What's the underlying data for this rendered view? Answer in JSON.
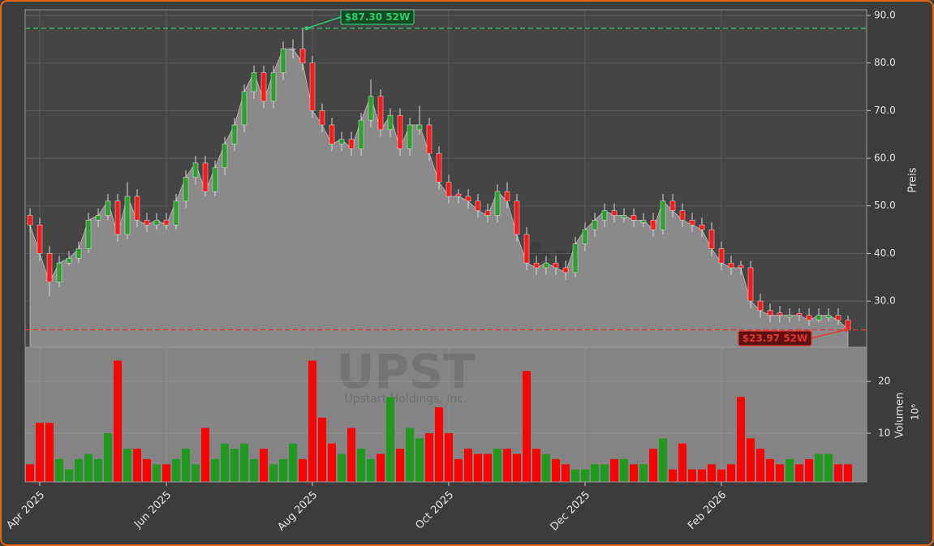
{
  "chart_data": {
    "type": "candlestick",
    "categories": [
      null,
      "Apr 2025",
      null,
      null,
      null,
      null,
      null,
      null,
      null,
      null,
      null,
      null,
      null,
      null,
      "Jun 2025",
      null,
      null,
      null,
      null,
      null,
      null,
      null,
      null,
      null,
      null,
      null,
      null,
      null,
      null,
      "Aug 2025",
      null,
      null,
      null,
      null,
      null,
      null,
      null,
      null,
      null,
      null,
      null,
      null,
      null,
      "Oct 2025",
      null,
      null,
      null,
      null,
      null,
      null,
      null,
      null,
      null,
      null,
      null,
      null,
      null,
      "Dec 2025",
      null,
      null,
      null,
      null,
      null,
      null,
      null,
      null,
      null,
      null,
      null,
      null,
      null,
      "Feb 2026",
      null,
      null,
      null,
      null,
      null,
      null,
      null,
      null,
      null,
      null,
      null,
      null,
      null
    ],
    "open": [
      48,
      46,
      40,
      34,
      38,
      39,
      41,
      47,
      48,
      51,
      44,
      52,
      47,
      46,
      47,
      46,
      51,
      56,
      59,
      53,
      58,
      63,
      67,
      74,
      78,
      72,
      78,
      83,
      83,
      80,
      70,
      67,
      63,
      64,
      62,
      68,
      73,
      66,
      69,
      62,
      66,
      67,
      61,
      55,
      52.5,
      52,
      51,
      49,
      48,
      53,
      51,
      44,
      38,
      37,
      38,
      37,
      36,
      42,
      45,
      47,
      49,
      47.5,
      48,
      46.5,
      47,
      45,
      51,
      49,
      47,
      46,
      45,
      41,
      38,
      37.5,
      37,
      30,
      28,
      27.5,
      26.6,
      27.4,
      27,
      26,
      26.5,
      27,
      26
    ],
    "high": [
      49.5,
      47.5,
      41.5,
      39.5,
      40.5,
      42.5,
      48.5,
      49.5,
      52.5,
      52.5,
      55,
      53.5,
      48.5,
      48.5,
      48.5,
      52.5,
      57.5,
      60.5,
      60.5,
      59.5,
      64.5,
      68.5,
      75.5,
      79.5,
      79.5,
      79.5,
      84.5,
      85,
      87.3,
      81.5,
      71.5,
      68.5,
      65.5,
      65.5,
      69.5,
      76.5,
      74.5,
      70.5,
      70.5,
      68.5,
      71,
      68.5,
      62.5,
      56.5,
      53.5,
      53.5,
      52.5,
      50.5,
      54.5,
      55,
      52.5,
      45.5,
      39.5,
      39.5,
      39.5,
      38.5,
      43.5,
      46.5,
      48.5,
      50.5,
      50.5,
      49.5,
      49.5,
      48.5,
      48.5,
      52.5,
      52.5,
      50.5,
      48.5,
      47.5,
      46.5,
      42.5,
      39.5,
      38.5,
      38.5,
      31.5,
      29.5,
      29,
      28.5,
      28.5,
      28.5,
      28.5,
      28.5,
      28.5,
      27
    ],
    "low": [
      44.5,
      38.5,
      31,
      33,
      37.5,
      38,
      40,
      45.5,
      47,
      42.5,
      43,
      45.5,
      44.5,
      45,
      45,
      45,
      49.5,
      54.5,
      52,
      52,
      56.5,
      61.5,
      65.5,
      72.5,
      70.5,
      70.5,
      76.5,
      81,
      78.5,
      68.5,
      65.5,
      61.5,
      61.5,
      60.5,
      60.5,
      66.5,
      64.5,
      64.5,
      60.5,
      60.5,
      65,
      59.5,
      53.5,
      50.5,
      50.5,
      49.5,
      47.5,
      46.5,
      46.5,
      49.5,
      42.5,
      36.5,
      35.5,
      35.5,
      35.5,
      34.5,
      35,
      40.5,
      43.5,
      45.5,
      46.5,
      46.5,
      45.5,
      45.5,
      43.5,
      44,
      47.5,
      45.5,
      44.5,
      43.5,
      39.5,
      36.5,
      35.5,
      35.5,
      28.5,
      26.5,
      25.5,
      25.5,
      25.5,
      25.8,
      24.8,
      25.5,
      25.8,
      25,
      23.97
    ],
    "close": [
      46,
      40,
      34,
      38,
      39,
      41,
      47,
      48,
      51,
      44,
      52,
      47,
      46,
      47,
      46,
      51,
      56,
      59,
      53,
      58,
      63,
      67,
      74,
      78,
      72,
      78,
      83,
      83,
      80,
      70,
      67,
      63,
      64,
      62,
      68,
      73,
      66,
      69,
      62,
      67,
      67,
      61,
      55,
      52,
      52,
      51,
      49,
      48,
      53,
      51,
      44,
      38,
      37,
      38,
      37,
      36,
      42,
      45,
      47,
      49,
      48,
      48,
      47,
      47,
      45,
      51,
      49,
      47,
      46,
      45,
      41,
      38,
      37,
      37,
      30,
      28,
      27,
      27,
      27,
      27,
      26,
      27,
      27,
      26,
      24
    ],
    "volume": [
      4,
      12,
      12,
      5,
      3,
      5,
      6,
      5,
      10,
      24,
      7,
      7,
      5,
      4,
      4,
      5,
      7,
      4,
      11,
      5,
      8,
      7,
      8,
      5,
      7,
      4,
      5,
      8,
      5,
      24,
      13,
      8,
      6,
      11,
      7,
      5,
      6,
      17,
      7,
      11,
      9,
      10,
      15,
      10,
      5,
      7,
      6,
      6,
      7,
      7,
      6,
      22,
      7,
      6,
      5,
      4,
      3,
      3,
      4,
      4,
      5,
      5,
      4,
      4,
      7,
      9,
      3,
      8,
      3,
      3,
      4,
      3,
      4,
      17,
      9,
      7,
      5,
      4,
      5,
      4,
      5,
      6,
      6,
      4,
      4
    ],
    "ylim": [
      20.3,
      91.2
    ],
    "yticks": [
      {
        "value": 30,
        "label": "30.0"
      },
      {
        "value": 40,
        "label": "40.0"
      },
      {
        "value": 50,
        "label": "50.0"
      },
      {
        "value": 60,
        "label": "60.0"
      },
      {
        "value": 70,
        "label": "70.0"
      },
      {
        "value": 80,
        "label": "80.0"
      },
      {
        "value": 90,
        "label": "90.0"
      }
    ],
    "ylabel": "Preis",
    "volume_ylim": [
      0.6,
      26.6
    ],
    "volume_yticks": [
      10,
      20
    ],
    "volume_label": "Volumen",
    "volume_multiplier": "10⁶",
    "up_color": "#2ca02c",
    "down_color": "#ff1a1a",
    "volume_up_color": "#1f9a1f",
    "volume_down_color": "#ff0000",
    "area_color": "#8a8a8a",
    "grid": true,
    "annotations": [
      {
        "text": "$87.30 52W",
        "value": 87.3,
        "color": "#2ecc71"
      },
      {
        "text": "$23.97 52W",
        "value": 23.97,
        "color": "#e8332b"
      }
    ],
    "watermark": "forexsignale.trade",
    "ticker": "UPST",
    "company": "Upstart Holdings, Inc."
  }
}
